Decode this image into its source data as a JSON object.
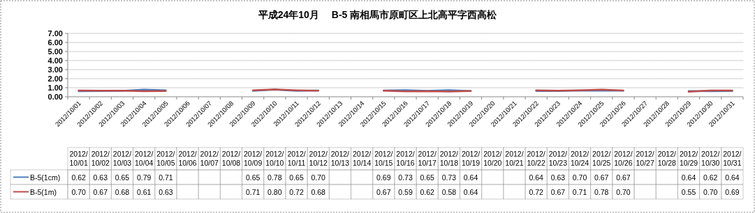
{
  "chart_data": {
    "type": "line",
    "title": "平成24年10月　 B-5 南相馬市原町区上北高平字西高松",
    "categories": [
      "2012/10/01",
      "2012/10/02",
      "2012/10/03",
      "2012/10/04",
      "2012/10/05",
      "2012/10/06",
      "2012/10/07",
      "2012/10/08",
      "2012/10/09",
      "2012/10/10",
      "2012/10/11",
      "2012/10/12",
      "2012/10/13",
      "2012/10/14",
      "2012/10/15",
      "2012/10/16",
      "2012/10/17",
      "2012/10/18",
      "2012/10/19",
      "2012/10/20",
      "2012/10/21",
      "2012/10/22",
      "2012/10/23",
      "2012/10/24",
      "2012/10/25",
      "2012/10/26",
      "2012/10/27",
      "2012/10/28",
      "2012/10/29",
      "2012/10/30",
      "2012/10/31"
    ],
    "series": [
      {
        "name": "B-5(1cm)",
        "color": "#4a7ebb",
        "values": [
          0.62,
          0.63,
          0.65,
          0.79,
          0.71,
          null,
          null,
          null,
          0.65,
          0.78,
          0.65,
          0.7,
          null,
          null,
          0.69,
          0.73,
          0.65,
          0.73,
          0.64,
          null,
          null,
          0.64,
          0.63,
          0.7,
          0.67,
          0.67,
          null,
          null,
          0.64,
          0.62,
          0.64
        ],
        "value_labels": [
          "0.62",
          "0.63",
          "0.65",
          "0.79",
          "0.71",
          null,
          null,
          null,
          "0.65",
          "0.78",
          "0.65",
          "0.70",
          null,
          null,
          "0.69",
          "0.73",
          "0.65",
          "0.73",
          "0.64",
          null,
          null,
          "0.64",
          "0.63",
          "0.70",
          "0.67",
          "0.67",
          null,
          null,
          "0.64",
          "0.62",
          "0.64"
        ]
      },
      {
        "name": "B-5(1m)",
        "color": "#be4b48",
        "values": [
          0.7,
          0.67,
          0.68,
          0.61,
          0.63,
          null,
          null,
          null,
          0.71,
          0.8,
          0.72,
          0.68,
          null,
          null,
          0.67,
          0.59,
          0.62,
          0.58,
          0.64,
          null,
          null,
          0.72,
          0.67,
          0.71,
          0.78,
          0.7,
          null,
          null,
          0.55,
          0.7,
          0.69
        ],
        "value_labels": [
          "0.70",
          "0.67",
          "0.68",
          "0.61",
          "0.63",
          null,
          null,
          null,
          "0.71",
          "0.80",
          "0.72",
          "0.68",
          null,
          null,
          "0.67",
          "0.59",
          "0.62",
          "0.58",
          "0.64",
          null,
          null,
          "0.72",
          "0.67",
          "0.71",
          "0.78",
          "0.70",
          null,
          null,
          "0.55",
          "0.70",
          "0.69"
        ]
      }
    ],
    "ylim": [
      0,
      7
    ],
    "yticks": [
      {
        "value": 0,
        "label": "0.00"
      },
      {
        "value": 1,
        "label": "1.00"
      },
      {
        "value": 2,
        "label": "2.00"
      },
      {
        "value": 3,
        "label": "3.00"
      },
      {
        "value": 4,
        "label": "4.00"
      },
      {
        "value": 5,
        "label": "5.00"
      },
      {
        "value": 6,
        "label": "6.00"
      },
      {
        "value": 7,
        "label": "7.00"
      }
    ],
    "grid": "y",
    "legend": "bottom"
  }
}
